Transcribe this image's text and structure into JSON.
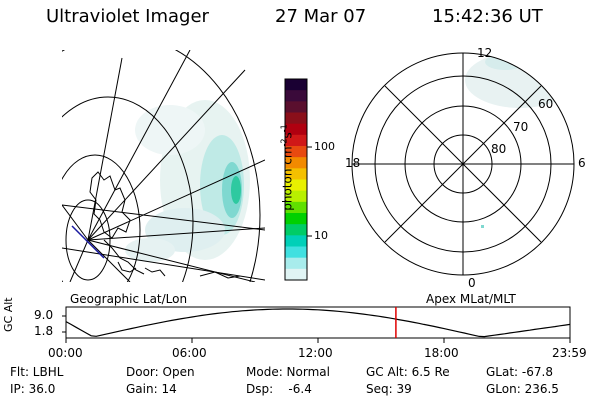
{
  "header": {
    "instrument": "Ultraviolet Imager",
    "date": "27 Mar 07",
    "time": "15:42:36 UT"
  },
  "left_panel": {
    "caption": "Geographic Lat/Lon"
  },
  "right_panel": {
    "caption": "Apex MLat/MLT",
    "mlt_labels": {
      "top": "12",
      "left": "18",
      "right": "6",
      "bottom": "0"
    },
    "lat_labels": [
      "60",
      "70",
      "80"
    ]
  },
  "colorbar": {
    "label": "photon cm",
    "label_sup1": "-2",
    "label_mid": "s",
    "label_sup2": "-1",
    "ticks": [
      "100",
      "10"
    ],
    "colors": [
      "#1a0033",
      "#3a0a3a",
      "#5a0f2e",
      "#8a0f1a",
      "#b00010",
      "#d01818",
      "#e84a10",
      "#f28a00",
      "#f4c000",
      "#e8f000",
      "#b8f000",
      "#60e000",
      "#00d000",
      "#00cc66",
      "#00d0b8",
      "#40e0e0",
      "#a8ecec",
      "#e0f4f4"
    ]
  },
  "timeline": {
    "ylabel": "GC Alt",
    "ytick_top": "9.0",
    "ytick_bottom": "1.8",
    "xticks": [
      "00:00",
      "06:00",
      "12:00",
      "18:00",
      "23:59"
    ],
    "marker_time": "15:42",
    "marker_color": "#e00000"
  },
  "footer": {
    "filter": "Flt: LBHL",
    "door": "Door: Open",
    "mode": "Mode: Normal",
    "gc_alt": "GC Alt: 6.5 Re",
    "glat": "GLat: -67.8",
    "ip": "IP: 36.0",
    "gain": "Gain: 14",
    "dsp": "Dsp:    -6.4",
    "seq": "Seq: 39",
    "glon": "GLon: 236.5"
  }
}
